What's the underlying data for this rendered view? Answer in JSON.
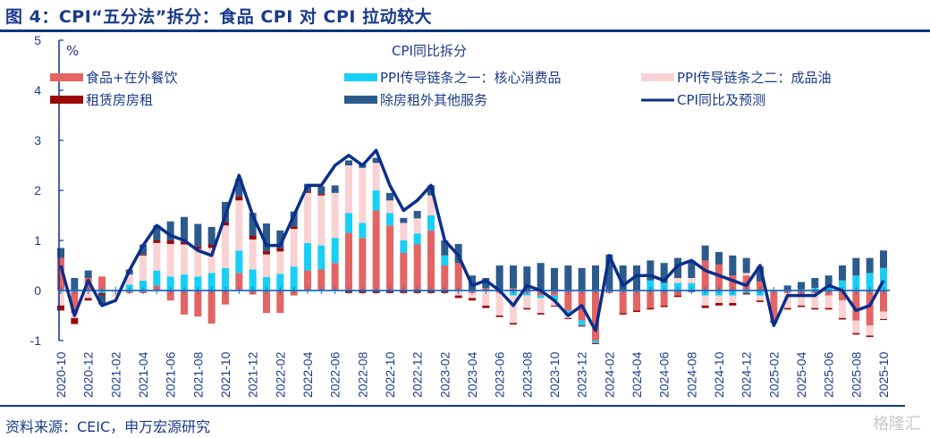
{
  "header": {
    "title": "图 4：CPI“五分法”拆分：食品 CPI 对 CPI 拉动较大"
  },
  "footer": {
    "source": "资料来源：CEIC，申万宏源研究",
    "watermark": "格隆汇"
  },
  "colors": {
    "food": "#e46464",
    "core_goods": "#18d0f5",
    "oil": "#f9d3d3",
    "rent": "#9b0a0a",
    "services": "#2c5a8c",
    "cpi": "#0b2f8a",
    "axis": "#1a6fc4"
  },
  "chart_data": {
    "type": "bar",
    "title": "CPI同比拆分",
    "ylabel": "%",
    "ylim": [
      -1,
      5
    ],
    "yticks": [
      -1,
      0,
      1,
      2,
      3,
      4,
      5
    ],
    "legend_placement": "top",
    "x": [
      "2020-10",
      "2020-11",
      "2020-12",
      "2021-01",
      "2021-02",
      "2021-03",
      "2021-04",
      "2021-05",
      "2021-06",
      "2021-07",
      "2021-08",
      "2021-09",
      "2021-10",
      "2021-11",
      "2021-12",
      "2022-01",
      "2022-02",
      "2022-03",
      "2022-04",
      "2022-05",
      "2022-06",
      "2022-07",
      "2022-08",
      "2022-09",
      "2022-10",
      "2022-11",
      "2022-12",
      "2023-01",
      "2023-02",
      "2023-03",
      "2023-04",
      "2023-05",
      "2023-06",
      "2023-07",
      "2023-08",
      "2023-09",
      "2023-10",
      "2023-11",
      "2023-12",
      "2024-01",
      "2024-02",
      "2024-03",
      "2024-04",
      "2024-05",
      "2024-06",
      "2024-07",
      "2024-08",
      "2024-09",
      "2024-10",
      "2024-11",
      "2024-12",
      "2025-01",
      "2025-02",
      "2025-03",
      "2025-04",
      "2025-05",
      "2025-06",
      "2025-07",
      "2025-08",
      "2025-09",
      "2025-10"
    ],
    "xtick_labels": [
      "2020-10",
      "2020-12",
      "2021-02",
      "2021-04",
      "2021-06",
      "2021-08",
      "2021-10",
      "2021-12",
      "2022-02",
      "2022-04",
      "2022-06",
      "2022-08",
      "2022-10",
      "2022-12",
      "2023-02",
      "2023-04",
      "2023-06",
      "2023-08",
      "2023-10",
      "2023-12",
      "2024-02",
      "2024-04",
      "2024-06",
      "2024-08",
      "2024-10",
      "2024-12",
      "2025-02",
      "2025-04",
      "2025-06",
      "2025-08",
      "2025-10"
    ],
    "series": [
      {
        "name": "食品+在外餐饮",
        "key": "food",
        "kind": "bar",
        "values": [
          0.65,
          -0.45,
          0.25,
          0.28,
          -0.02,
          -0.05,
          -0.05,
          0.1,
          -0.2,
          -0.48,
          -0.52,
          -0.66,
          -0.28,
          0.35,
          -0.08,
          -0.45,
          -0.45,
          -0.1,
          0.4,
          0.42,
          0.55,
          1.15,
          1.05,
          1.6,
          1.3,
          0.75,
          0.92,
          1.2,
          0.5,
          0.55,
          -0.05,
          0.05,
          -0.05,
          0.05,
          -0.05,
          -0.1,
          -0.1,
          -0.4,
          -0.6,
          -1.0,
          -0.05,
          -0.45,
          -0.4,
          -0.35,
          -0.3,
          -0.1,
          0.0,
          0.6,
          0.52,
          0.3,
          0.3,
          0.18,
          -0.6,
          -0.05,
          -0.1,
          -0.05,
          -0.1,
          -0.2,
          -0.6,
          -0.7,
          -0.42
        ]
      },
      {
        "name": "PPI传导链条之一：核心消费品",
        "key": "core_goods",
        "kind": "bar",
        "values": [
          0.0,
          0.0,
          0.0,
          -0.05,
          0.0,
          0.12,
          0.2,
          0.3,
          0.28,
          0.32,
          0.28,
          0.35,
          0.45,
          0.45,
          0.42,
          0.27,
          0.33,
          0.48,
          0.55,
          0.48,
          0.5,
          0.4,
          0.3,
          0.4,
          0.25,
          0.25,
          0.22,
          0.3,
          0.2,
          0.0,
          0.0,
          0.0,
          0.0,
          -0.1,
          -0.05,
          -0.05,
          -0.1,
          -0.1,
          -0.1,
          -0.05,
          0.0,
          0.0,
          0.0,
          0.2,
          0.15,
          0.15,
          0.15,
          -0.1,
          -0.1,
          -0.1,
          -0.05,
          -0.1,
          0.0,
          0.0,
          0.02,
          0.05,
          0.1,
          0.2,
          0.3,
          0.35,
          0.45
        ]
      },
      {
        "name": "PPI传导链条之二：成品油",
        "key": "oil",
        "kind": "bar",
        "values": [
          -0.3,
          -0.1,
          -0.15,
          0.0,
          -0.1,
          0.2,
          0.5,
          0.55,
          0.65,
          0.6,
          0.55,
          0.5,
          0.85,
          1.0,
          0.6,
          0.45,
          0.45,
          0.75,
          1.0,
          1.0,
          0.9,
          0.95,
          1.1,
          0.55,
          0.25,
          0.35,
          0.3,
          0.4,
          0.0,
          -0.1,
          -0.1,
          -0.3,
          -0.45,
          -0.55,
          -0.25,
          -0.3,
          -0.1,
          -0.05,
          0.0,
          0.0,
          0.0,
          0.0,
          0.0,
          0.0,
          0.0,
          0.1,
          0.1,
          -0.2,
          -0.15,
          -0.15,
          0.05,
          -0.1,
          0.0,
          -0.3,
          -0.2,
          -0.3,
          -0.25,
          -0.35,
          -0.25,
          -0.2,
          -0.15
        ]
      },
      {
        "name": "租赁房房租",
        "key": "rent",
        "kind": "bar",
        "values": [
          -0.1,
          -0.12,
          -0.05,
          -0.05,
          0.0,
          0.0,
          0.02,
          0.05,
          0.07,
          0.05,
          0.05,
          0.07,
          0.07,
          0.08,
          0.08,
          0.07,
          0.07,
          0.05,
          0.03,
          0.03,
          0.0,
          -0.05,
          -0.05,
          -0.05,
          -0.05,
          -0.05,
          -0.05,
          -0.05,
          -0.05,
          -0.05,
          -0.05,
          -0.05,
          -0.03,
          -0.03,
          -0.03,
          -0.03,
          -0.02,
          -0.02,
          -0.02,
          -0.02,
          0.02,
          -0.03,
          -0.03,
          -0.03,
          -0.03,
          -0.03,
          -0.03,
          -0.05,
          -0.05,
          -0.05,
          -0.03,
          -0.03,
          0.0,
          -0.03,
          -0.03,
          -0.03,
          -0.03,
          -0.03,
          -0.03,
          -0.03,
          -0.02
        ]
      },
      {
        "name": "除房租外其他服务",
        "key": "services",
        "kind": "bar",
        "values": [
          0.2,
          0.25,
          0.15,
          -0.18,
          0.0,
          0.1,
          0.2,
          0.3,
          0.38,
          0.5,
          0.45,
          0.35,
          0.4,
          0.35,
          0.45,
          0.55,
          0.35,
          0.3,
          0.15,
          0.15,
          0.15,
          0.1,
          0.1,
          0.1,
          0.15,
          0.1,
          0.15,
          0.2,
          0.3,
          0.38,
          0.3,
          0.2,
          0.5,
          0.45,
          0.48,
          0.55,
          0.45,
          0.5,
          0.45,
          0.5,
          0.7,
          0.5,
          0.5,
          0.4,
          0.4,
          0.4,
          0.35,
          0.3,
          0.25,
          0.4,
          0.3,
          0.3,
          -0.05,
          0.1,
          0.15,
          0.2,
          0.2,
          0.3,
          0.35,
          0.3,
          0.35
        ]
      },
      {
        "name": "CPI同比及预测",
        "key": "cpi",
        "kind": "line",
        "values": [
          0.5,
          -0.5,
          0.2,
          -0.3,
          -0.2,
          0.4,
          0.9,
          1.3,
          1.1,
          1.0,
          0.8,
          0.7,
          1.5,
          2.3,
          1.5,
          0.9,
          0.9,
          1.5,
          2.1,
          2.1,
          2.5,
          2.7,
          2.5,
          2.8,
          2.1,
          1.6,
          1.8,
          2.1,
          1.0,
          0.7,
          0.1,
          0.2,
          0.0,
          -0.3,
          0.1,
          0.0,
          -0.2,
          -0.5,
          -0.3,
          -0.8,
          0.7,
          0.1,
          0.3,
          0.3,
          0.2,
          0.5,
          0.6,
          0.4,
          0.3,
          0.2,
          0.1,
          0.5,
          -0.7,
          -0.1,
          -0.1,
          -0.1,
          0.1,
          0.0,
          -0.4,
          -0.3,
          0.2
        ]
      }
    ]
  }
}
